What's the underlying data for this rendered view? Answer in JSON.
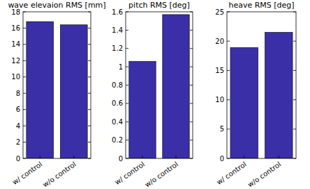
{
  "chart_data": [
    {
      "type": "bar",
      "title": "wave elevaion RMS [mm]",
      "categories": [
        "w/ control",
        "w/o control"
      ],
      "values": [
        16.8,
        16.4
      ],
      "color": "#3b2fa8",
      "ylim": [
        0,
        18
      ],
      "yticks": [
        0,
        2,
        4,
        6,
        8,
        10,
        12,
        14,
        16,
        18
      ],
      "grid": false
    },
    {
      "type": "bar",
      "title": "pitch RMS [deg]",
      "categories": [
        "w/ control",
        "w/o control"
      ],
      "values": [
        1.06,
        1.57
      ],
      "color": "#3b2fa8",
      "ylim": [
        0,
        1.6
      ],
      "yticks": [
        0,
        0.2,
        0.4,
        0.6,
        0.8,
        1,
        1.2,
        1.4,
        1.6
      ],
      "grid": false
    },
    {
      "type": "bar",
      "title": "heave RMS [deg]",
      "categories": [
        "w/ control",
        "w/o control"
      ],
      "values": [
        18.9,
        21.5
      ],
      "color": "#3b2fa8",
      "ylim": [
        0,
        25
      ],
      "yticks": [
        0,
        5,
        10,
        15,
        20,
        25
      ],
      "grid": false
    }
  ]
}
